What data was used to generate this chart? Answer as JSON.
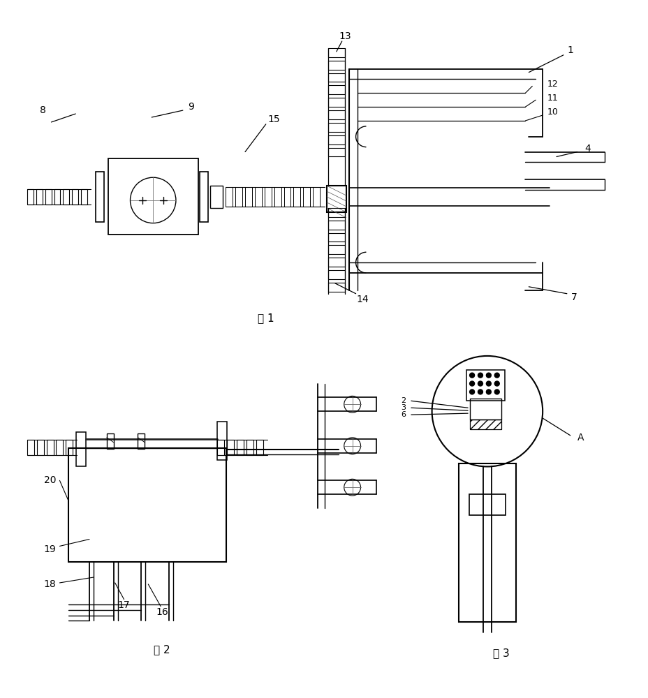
{
  "bg_color": "#ffffff",
  "line_color": "#000000",
  "fig1_label": "图 1",
  "fig2_label": "图 2",
  "fig3_label": "图 3"
}
